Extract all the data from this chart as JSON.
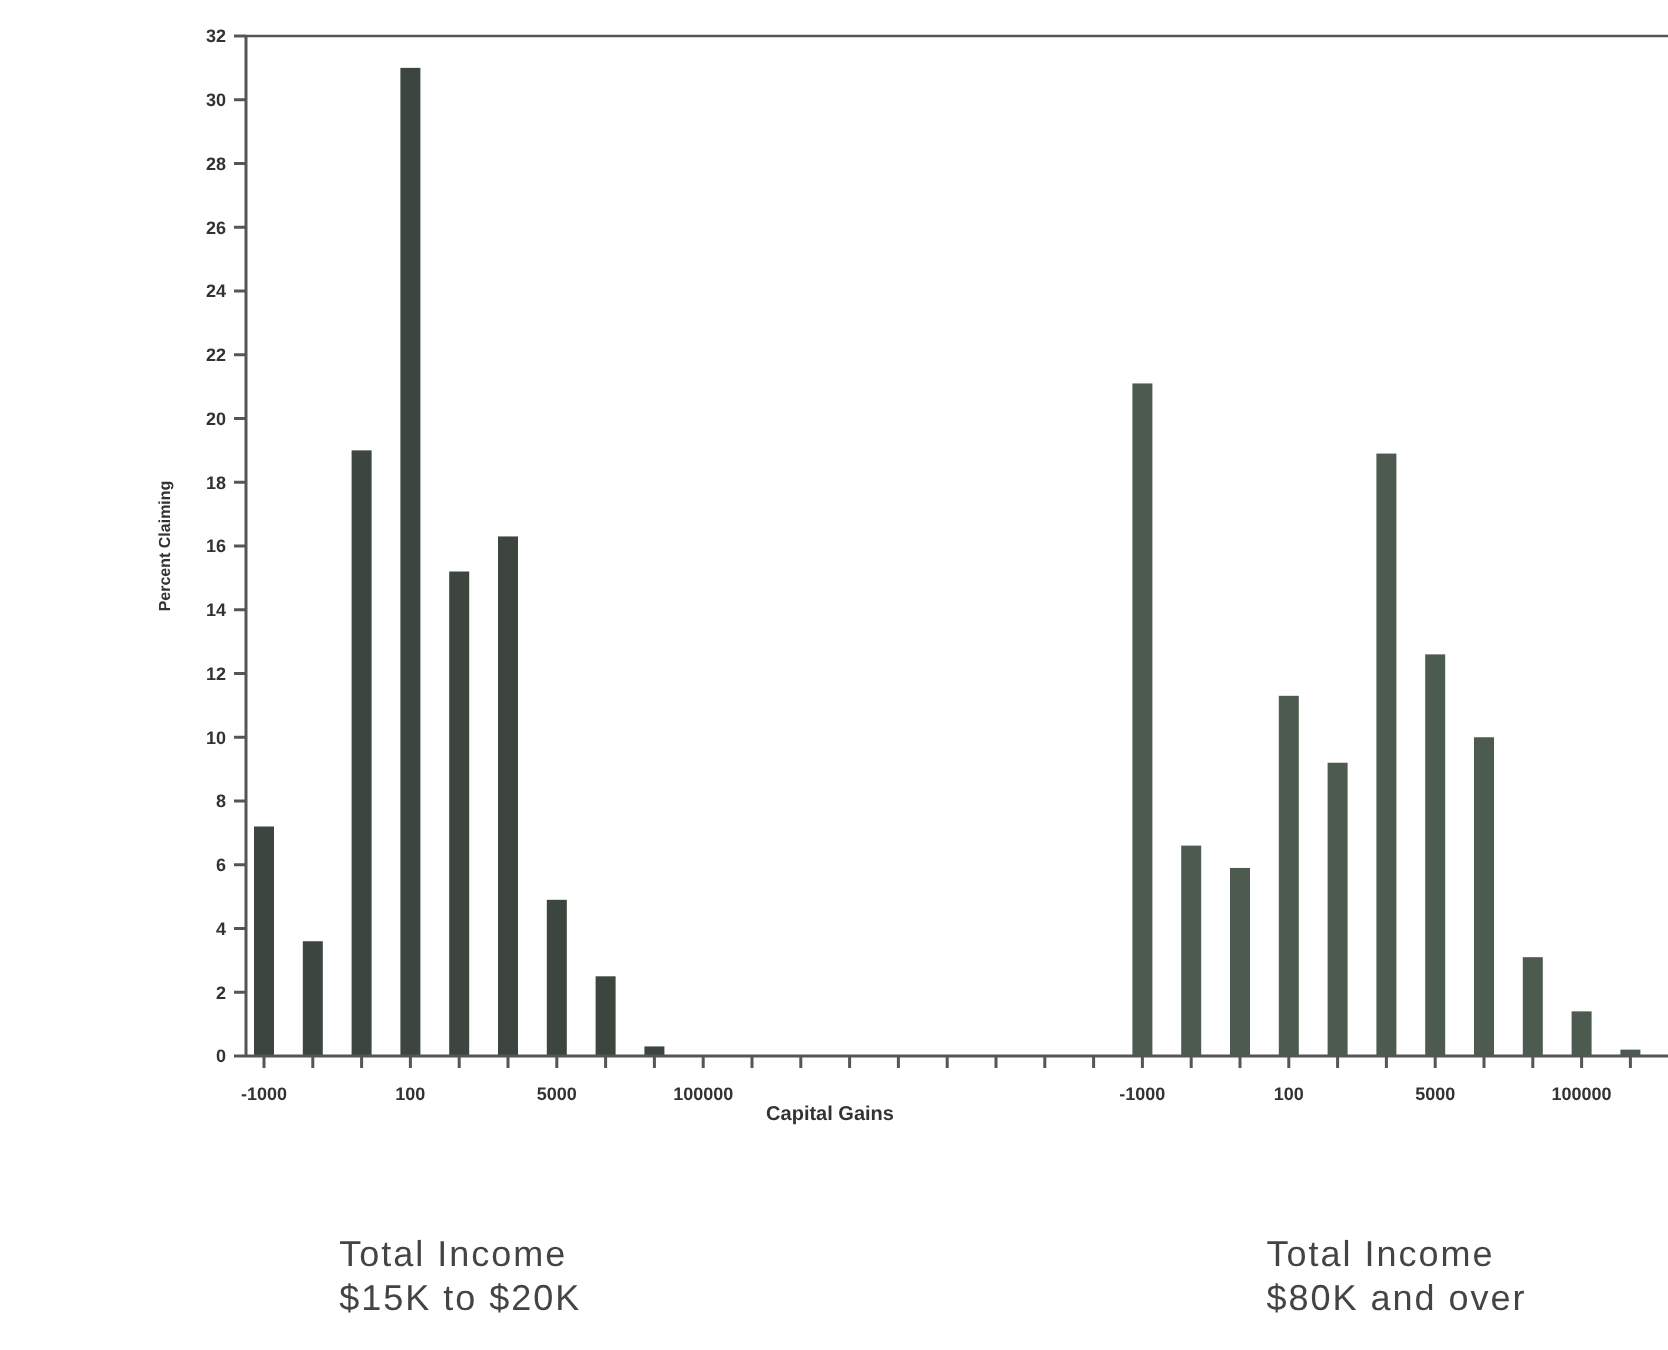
{
  "chart_data": {
    "type": "bar",
    "xlabel": "Capital Gains",
    "ylabel": "Percent Claiming",
    "categories": [
      "-1000",
      null,
      null,
      "100",
      null,
      null,
      "5000",
      null,
      null,
      "100000",
      null,
      null,
      null,
      null,
      null,
      null,
      null,
      null,
      "-1000",
      null,
      null,
      "100",
      null,
      null,
      "5000",
      null,
      null,
      "100000",
      null
    ],
    "series": [
      {
        "color": "#3c463e",
        "values": [
          7.2,
          3.6,
          19,
          31,
          15.2,
          16.3,
          4.9,
          2.5,
          0.3,
          null,
          null,
          null,
          null,
          null,
          null,
          null,
          null,
          null,
          null,
          null,
          null,
          null,
          null,
          null,
          null,
          null,
          null,
          null,
          null
        ]
      },
      {
        "color": "#4d5a4f",
        "values": [
          null,
          null,
          null,
          null,
          null,
          null,
          null,
          null,
          null,
          null,
          null,
          null,
          null,
          null,
          null,
          null,
          null,
          null,
          21.1,
          6.6,
          5.9,
          11.3,
          9.2,
          18.9,
          12.6,
          10,
          3.1,
          1.4,
          0.2
        ]
      }
    ],
    "ylim": [
      0,
      32
    ],
    "yticks": [
      0,
      2,
      4,
      6,
      8,
      10,
      12,
      14,
      16,
      18,
      20,
      22,
      24,
      26,
      28,
      30,
      32
    ],
    "annotations": [
      "Total Income\n$15K to $20K",
      "Total Income\n$80K and over"
    ]
  }
}
